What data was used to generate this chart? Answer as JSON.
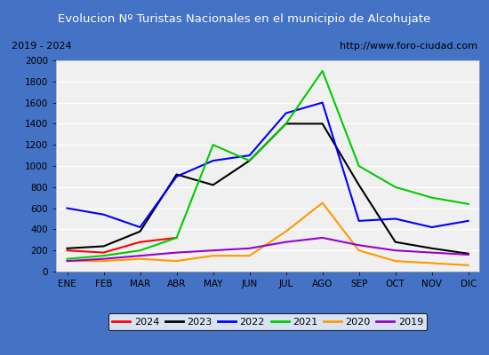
{
  "title": "Evolucion Nº Turistas Nacionales en el municipio de Alcohujate",
  "subtitle_left": "2019 - 2024",
  "subtitle_right": "http://www.foro-ciudad.com",
  "title_bgcolor": "#4472c4",
  "title_color": "white",
  "months": [
    "ENE",
    "FEB",
    "MAR",
    "ABR",
    "MAY",
    "JUN",
    "JUL",
    "AGO",
    "SEP",
    "OCT",
    "NOV",
    "DIC"
  ],
  "series": {
    "2024": {
      "color": "#ff0000",
      "data": [
        200,
        180,
        280,
        320,
        null,
        null,
        null,
        null,
        null,
        null,
        null,
        null
      ]
    },
    "2023": {
      "color": "#000000",
      "data": [
        220,
        240,
        380,
        920,
        820,
        1050,
        1400,
        1400,
        820,
        280,
        220,
        170
      ]
    },
    "2022": {
      "color": "#0000ff",
      "data": [
        600,
        540,
        420,
        900,
        1050,
        1100,
        1500,
        1600,
        480,
        500,
        420,
        480
      ]
    },
    "2021": {
      "color": "#00cc00",
      "data": [
        120,
        150,
        200,
        320,
        1200,
        1050,
        1400,
        1900,
        1000,
        800,
        700,
        640
      ]
    },
    "2020": {
      "color": "#ff9900",
      "data": [
        100,
        100,
        120,
        100,
        150,
        150,
        380,
        650,
        200,
        100,
        80,
        60
      ]
    },
    "2019": {
      "color": "#9900cc",
      "data": [
        100,
        120,
        150,
        180,
        200,
        220,
        280,
        320,
        250,
        200,
        180,
        160
      ]
    }
  },
  "ylim": [
    0,
    2000
  ],
  "yticks": [
    0,
    200,
    400,
    600,
    800,
    1000,
    1200,
    1400,
    1600,
    1800,
    2000
  ],
  "plot_bg": "#f0f0f0",
  "grid_color": "#ffffff",
  "outer_bg": "#4472c4",
  "inner_bg": "#ffffff"
}
